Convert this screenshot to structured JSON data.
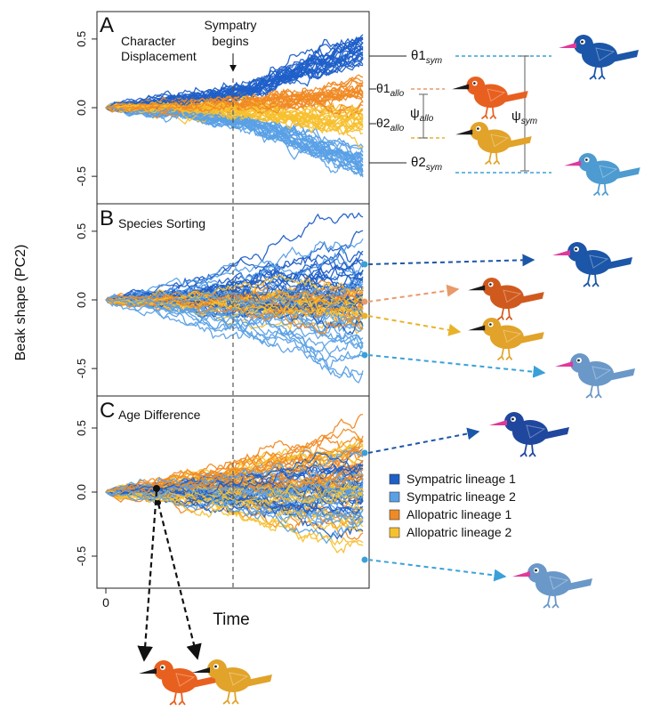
{
  "figure": {
    "ylabel": "Beak shape (PC2)",
    "xlabel": "Time",
    "x_tick_zero": "0",
    "sympatry_label_line1": "Sympatry",
    "sympatry_label_line2": "begins"
  },
  "colors": {
    "sym1": "#1f5fc8",
    "sym2": "#5aa0e6",
    "allo1": "#f08a24",
    "allo2": "#f7c02e",
    "bird_sym1": "#1b56a8",
    "bird_sym2": "#4d9bd0",
    "bird_allo1": "#e8601f",
    "bird_allo2": "#e1a32a",
    "beak_sym": "#e0399b",
    "beak_allo": "#1a1a1a"
  },
  "legend": [
    {
      "label": "Sympatric lineage 1",
      "color": "#1f5fc8"
    },
    {
      "label": "Sympatric lineage 2",
      "color": "#5aa0e6"
    },
    {
      "label": "Allopatric lineage 1",
      "color": "#f08a24"
    },
    {
      "label": "Allopatric lineage 2",
      "color": "#f7c02e"
    }
  ],
  "annotations": {
    "theta1_sym": "θ1",
    "theta1_sym_sub": "sym",
    "theta1_allo": "θ1",
    "theta1_allo_sub": "allo",
    "theta2_allo": "θ2",
    "theta2_allo_sub": "allo",
    "theta2_sym": "θ2",
    "theta2_sym_sub": "sym",
    "psi_allo": "ψ",
    "psi_allo_sub": "allo",
    "psi_sym": "ψ",
    "psi_sym_sub": "sym"
  },
  "chart_data": [
    {
      "type": "line",
      "panel_letter": "A",
      "title": "Character Displacement",
      "ylim": [
        -0.7,
        0.7
      ],
      "yticks": [
        "0.5",
        "0.0",
        "-0.5"
      ],
      "x_range": [
        0,
        1
      ],
      "sympatry_x": 0.5,
      "series": [
        {
          "lineage": "sym1",
          "count": 24,
          "start": 0.0,
          "end_mean": 0.48,
          "spread": 0.06,
          "sigma": 0.03
        },
        {
          "lineage": "sym2",
          "count": 24,
          "start": 0.0,
          "end_mean": -0.45,
          "spread": 0.07,
          "sigma": 0.03
        },
        {
          "lineage": "allo1",
          "count": 20,
          "start": 0.0,
          "end_mean": 0.14,
          "spread": 0.05,
          "sigma": 0.03
        },
        {
          "lineage": "allo2",
          "count": 20,
          "start": 0.0,
          "end_mean": -0.12,
          "spread": 0.05,
          "sigma": 0.03
        }
      ]
    },
    {
      "type": "line",
      "panel_letter": "B",
      "title": "Species Sorting",
      "ylim": [
        -0.7,
        0.7
      ],
      "yticks": [
        "0.5",
        "0.0",
        "-0.5"
      ],
      "x_range": [
        0,
        1
      ],
      "sympatry_x": 0.5,
      "series": [
        {
          "lineage": "sym1",
          "count": 24,
          "start": 0.0,
          "end_mean": 0.15,
          "spread": 0.22,
          "sigma": 0.035
        },
        {
          "lineage": "sym2",
          "count": 24,
          "start": 0.0,
          "end_mean": -0.2,
          "spread": 0.22,
          "sigma": 0.035
        },
        {
          "lineage": "allo1",
          "count": 20,
          "start": 0.0,
          "end_mean": 0.0,
          "spread": 0.08,
          "sigma": 0.03
        },
        {
          "lineage": "allo2",
          "count": 20,
          "start": 0.0,
          "end_mean": -0.05,
          "spread": 0.08,
          "sigma": 0.03
        }
      ]
    },
    {
      "type": "line",
      "panel_letter": "C",
      "title": "Age Difference",
      "ylim": [
        -0.75,
        0.75
      ],
      "yticks": [
        "0.5",
        "0.0",
        "-0.5"
      ],
      "x_range": [
        0,
        1
      ],
      "sympatry_x": 0.5,
      "series": [
        {
          "lineage": "sym1",
          "count": 22,
          "start": 0.0,
          "end_mean": 0.05,
          "spread": 0.22,
          "sigma": 0.035
        },
        {
          "lineage": "sym2",
          "count": 22,
          "start": 0.0,
          "end_mean": -0.1,
          "spread": 0.22,
          "sigma": 0.035
        },
        {
          "lineage": "allo1",
          "count": 22,
          "start": 0.0,
          "end_mean": 0.1,
          "spread": 0.22,
          "sigma": 0.035
        },
        {
          "lineage": "allo2",
          "count": 22,
          "start": 0.0,
          "end_mean": 0.0,
          "spread": 0.25,
          "sigma": 0.035
        }
      ]
    }
  ]
}
